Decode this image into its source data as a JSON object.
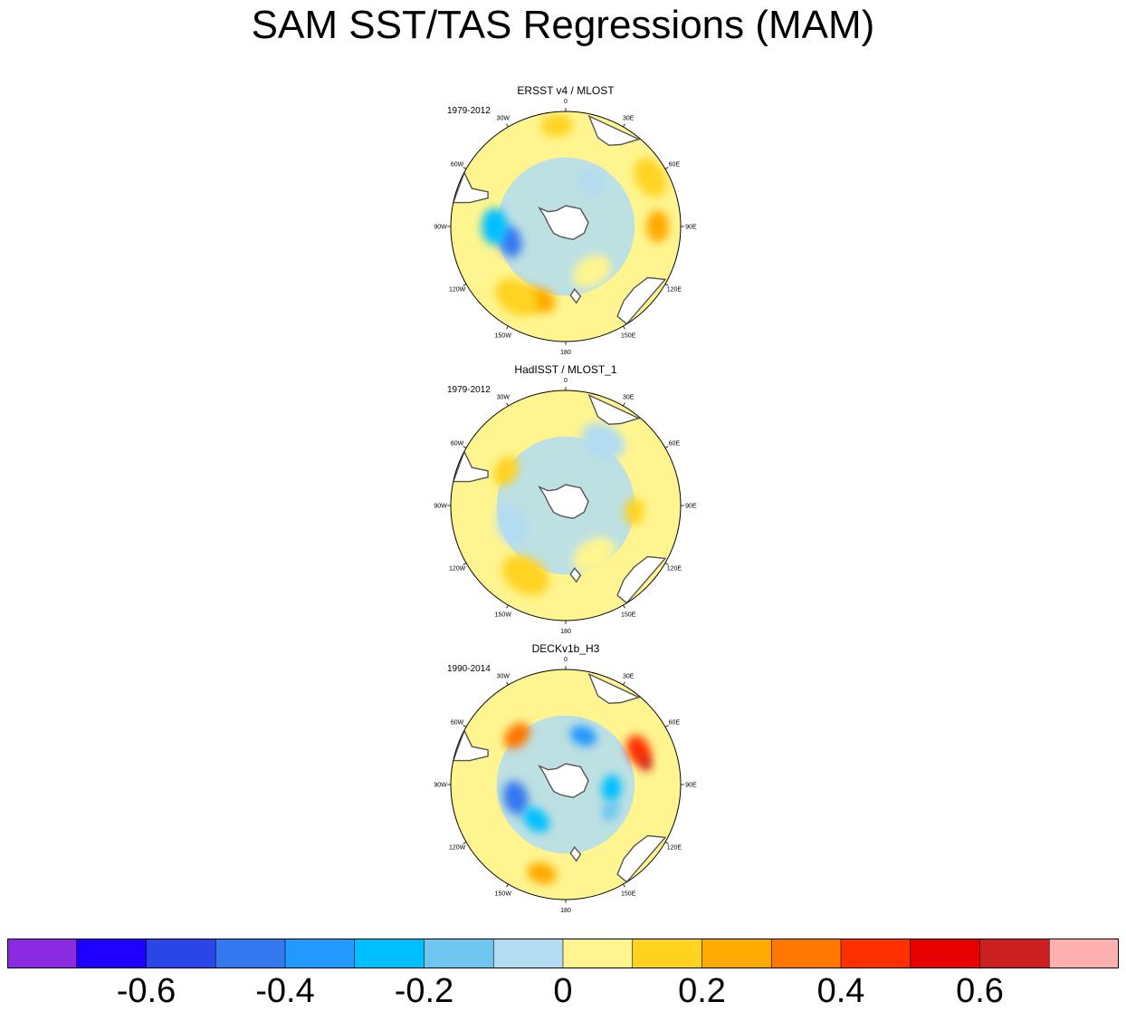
{
  "title": "SAM SST/TAS Regressions (MAM)",
  "chart_data": {
    "type": "heatmap",
    "projection": "south-polar-stereographic",
    "title": "SAM SST/TAS Regressions (MAM)",
    "longitude_labels": [
      "0",
      "30E",
      "60E",
      "90E",
      "120E",
      "150E",
      "180",
      "150W",
      "120W",
      "90W",
      "60W",
      "30W"
    ],
    "panels": [
      {
        "name": "ERSST v4 / MLOST",
        "period": "1979-2012",
        "features": [
          {
            "lon": -5,
            "r": 0.88,
            "value": 0.15,
            "size": 0.14
          },
          {
            "lon": 60,
            "r": 0.85,
            "value": 0.15,
            "size": 0.18
          },
          {
            "lon": 90,
            "r": 0.8,
            "value": 0.2,
            "size": 0.14
          },
          {
            "lon": 30,
            "r": 0.45,
            "value": -0.1,
            "size": 0.14
          },
          {
            "lon": -105,
            "r": 0.5,
            "value": -0.5,
            "size": 0.14
          },
          {
            "lon": -90,
            "r": 0.62,
            "value": -0.3,
            "size": 0.16
          },
          {
            "lon": -160,
            "r": 0.68,
            "value": 0.25,
            "size": 0.15
          },
          {
            "lon": -145,
            "r": 0.75,
            "value": 0.15,
            "size": 0.2
          },
          {
            "lon": 150,
            "r": 0.45,
            "value": 0.05,
            "size": 0.18
          }
        ]
      },
      {
        "name": "HadISST / MLOST_1",
        "period": "1979-2012",
        "features": [
          {
            "lon": -60,
            "r": 0.6,
            "value": 0.15,
            "size": 0.14
          },
          {
            "lon": 95,
            "r": 0.6,
            "value": 0.15,
            "size": 0.12
          },
          {
            "lon": -150,
            "r": 0.7,
            "value": 0.15,
            "size": 0.22
          },
          {
            "lon": 30,
            "r": 0.65,
            "value": -0.1,
            "size": 0.2
          },
          {
            "lon": -110,
            "r": 0.5,
            "value": -0.1,
            "size": 0.18
          },
          {
            "lon": 150,
            "r": 0.5,
            "value": 0.05,
            "size": 0.2
          }
        ]
      },
      {
        "name": "DECKv1b_H3",
        "period": "1990-2014",
        "features": [
          {
            "lon": -45,
            "r": 0.6,
            "value": 0.35,
            "size": 0.13
          },
          {
            "lon": 65,
            "r": 0.7,
            "value": 0.45,
            "size": 0.14
          },
          {
            "lon": 75,
            "r": 0.72,
            "value": 0.6,
            "size": 0.07
          },
          {
            "lon": 20,
            "r": 0.45,
            "value": -0.35,
            "size": 0.12
          },
          {
            "lon": 95,
            "r": 0.4,
            "value": -0.3,
            "size": 0.12
          },
          {
            "lon": -105,
            "r": 0.45,
            "value": -0.45,
            "size": 0.15
          },
          {
            "lon": -140,
            "r": 0.4,
            "value": -0.3,
            "size": 0.13
          },
          {
            "lon": -165,
            "r": 0.8,
            "value": 0.25,
            "size": 0.13
          },
          {
            "lon": 120,
            "r": 0.45,
            "value": -0.2,
            "size": 0.1
          }
        ]
      }
    ],
    "colorbar": {
      "boundaries": [
        -0.8,
        -0.7,
        -0.6,
        -0.5,
        -0.4,
        -0.3,
        -0.2,
        -0.1,
        0,
        0.1,
        0.2,
        0.3,
        0.4,
        0.5,
        0.6,
        0.7,
        0.8
      ],
      "colors": [
        "#8a2be2",
        "#1f00ff",
        "#2a46e6",
        "#3478ef",
        "#2299ff",
        "#00bfff",
        "#6ec6f0",
        "#b2dcf2",
        "#fff590",
        "#ffd320",
        "#ffaa00",
        "#ff7700",
        "#ff3000",
        "#e60000",
        "#cc1f1f",
        "#ffb0b0"
      ],
      "tick_values": [
        -0.6,
        -0.4,
        -0.2,
        0,
        0.2,
        0.4,
        0.6
      ],
      "tick_labels": [
        "-0.6",
        "-0.4",
        "-0.2",
        "0",
        "0.2",
        "0.4",
        "0.6"
      ]
    }
  }
}
